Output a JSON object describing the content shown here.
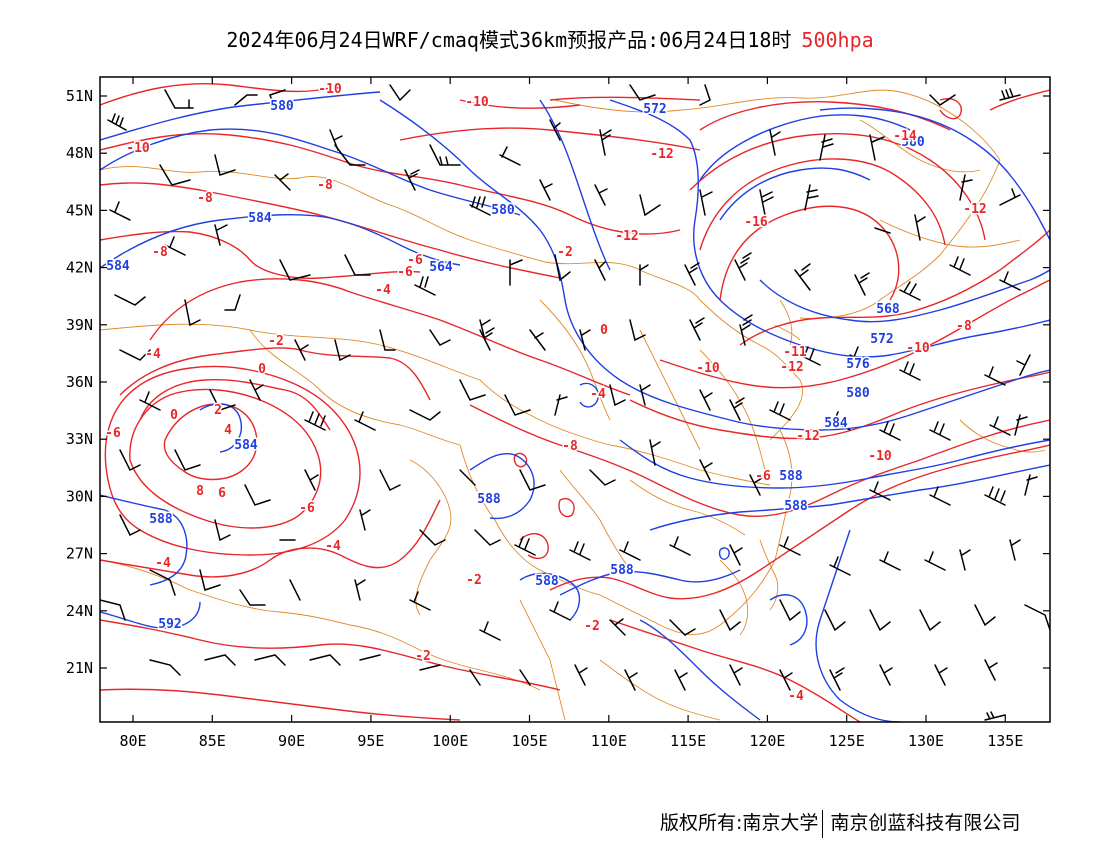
{
  "header": {
    "title": "2024年06月24日WRF/cmaq模式36km预报产品:06月24日18时",
    "level": "500hpa",
    "level_color": "#e8262a"
  },
  "axes": {
    "lat_labels": [
      "51N",
      "48N",
      "45N",
      "42N",
      "39N",
      "36N",
      "33N",
      "30N",
      "27N",
      "24N",
      "21N"
    ],
    "lon_labels": [
      "80E",
      "85E",
      "90E",
      "95E",
      "100E",
      "105E",
      "110E",
      "115E",
      "120E",
      "125E",
      "130E",
      "135E"
    ]
  },
  "colors": {
    "geopotential": "#1f3fe0",
    "temperature": "#e8262a",
    "borders": "#e08a2a",
    "wind": "#000000"
  },
  "contour_labels": {
    "geopotential": [
      "580",
      "572",
      "580",
      "584",
      "580",
      "584",
      "564",
      "568",
      "572",
      "576",
      "580",
      "584",
      "584",
      "588",
      "588",
      "588",
      "588",
      "588",
      "588",
      "592"
    ],
    "temperature": [
      "-10",
      "-10",
      "-10",
      "-8",
      "-8",
      "-8",
      "-6",
      "-6",
      "-4",
      "-2",
      "0",
      "-4",
      "-6",
      "-10",
      "-12",
      "-12",
      "-10",
      "-12",
      "-14",
      "-16",
      "-12",
      "-8",
      "-11",
      "-12",
      "-10",
      "-8",
      "-6",
      "-4",
      "0",
      "2",
      "4",
      "6",
      "8",
      "-2",
      "-2",
      "-2",
      "-4",
      "-4",
      "-4",
      "-6",
      "0",
      "-2"
    ]
  },
  "footer": {
    "copyright": "版权所有:南京大学",
    "company": "南京创蓝科技有限公司"
  }
}
